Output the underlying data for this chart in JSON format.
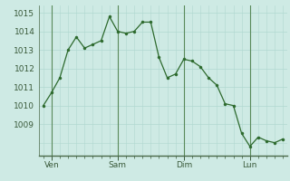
{
  "y_values": [
    1010,
    1010.7,
    1011.5,
    1013.0,
    1013.7,
    1013.1,
    1013.3,
    1013.5,
    1014.8,
    1014.0,
    1013.9,
    1014.0,
    1014.5,
    1014.5,
    1012.6,
    1011.5,
    1011.7,
    1012.5,
    1012.4,
    1012.1,
    1011.5,
    1011.1,
    1010.1,
    1010.0,
    1008.5,
    1007.8,
    1008.3,
    1008.1,
    1008.0,
    1008.2
  ],
  "x_ticks_pos": [
    1,
    9,
    17,
    25
  ],
  "x_tick_labels": [
    "Ven",
    "Sam",
    "Dim",
    "Lun"
  ],
  "y_ticks": [
    1009,
    1010,
    1011,
    1012,
    1013,
    1014,
    1015
  ],
  "ylim": [
    1007.3,
    1015.4
  ],
  "xlim": [
    -0.5,
    29.5
  ],
  "line_color": "#2d6a2d",
  "marker_color": "#2d6a2d",
  "bg_color": "#ceeae4",
  "grid_color": "#b0d8d0",
  "tick_color": "#3a5a3a",
  "vline_color": "#5a8a5a",
  "spine_color": "#4a6a4a"
}
